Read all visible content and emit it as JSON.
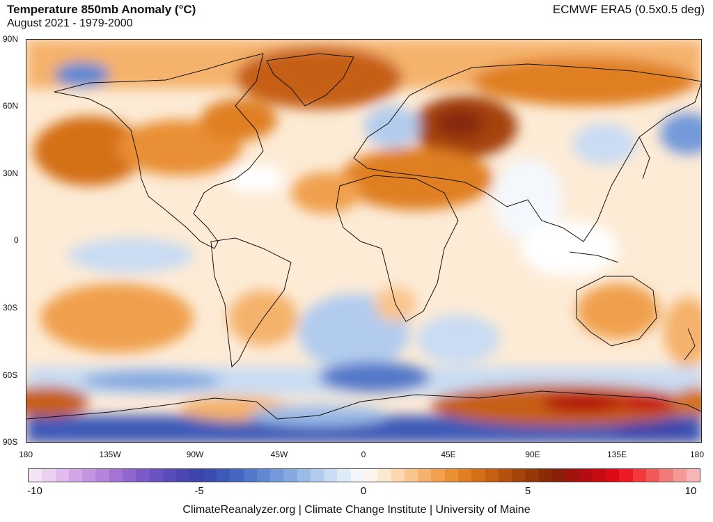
{
  "header": {
    "title": "Temperature 850mb Anomaly (°C)",
    "subtitle": "August 2021 - 1979-2000",
    "source": "ECMWF ERA5 (0.5x0.5 deg)"
  },
  "axes": {
    "lat_labels": [
      "90N",
      "60N",
      "30N",
      "0",
      "30S",
      "60S",
      "90S"
    ],
    "lon_labels": [
      "180",
      "135W",
      "90W",
      "45W",
      "0",
      "45E",
      "90E",
      "135E",
      "180"
    ]
  },
  "colorbar": {
    "labels": [
      "-10",
      "-5",
      "0",
      "5",
      "10"
    ],
    "colors": [
      "#f6e4f4",
      "#ecd0ef",
      "#e0bbeb",
      "#d2a6e6",
      "#c595e1",
      "#b584dc",
      "#a474d5",
      "#9066cf",
      "#7c5bc8",
      "#6a53c1",
      "#5a4cb9",
      "#4b47b1",
      "#3d45aa",
      "#3a4eb1",
      "#3d5ab8",
      "#4567c1",
      "#5278c9",
      "#6189d1",
      "#739ad9",
      "#86aae0",
      "#9bbbe7",
      "#b2ccee",
      "#c9dcf3",
      "#e0ebf8",
      "#f4f8fc",
      "#fdf6ee",
      "#fde9d2",
      "#fcd8b1",
      "#f9c58e",
      "#f5b26c",
      "#f0a04e",
      "#e98f34",
      "#e07f22",
      "#d46f18",
      "#c65f12",
      "#b6500e",
      "#a5430b",
      "#943709",
      "#882c08",
      "#8a1e0a",
      "#a0120e",
      "#b40c10",
      "#c80a12",
      "#db0c16",
      "#ec1a22",
      "#f23a3c",
      "#f25a5a",
      "#f27a7a",
      "#f49898",
      "#f7b6b6"
    ]
  },
  "footer": "ClimateReanalyzer.org | Climate Change Institute | University of Maine"
}
